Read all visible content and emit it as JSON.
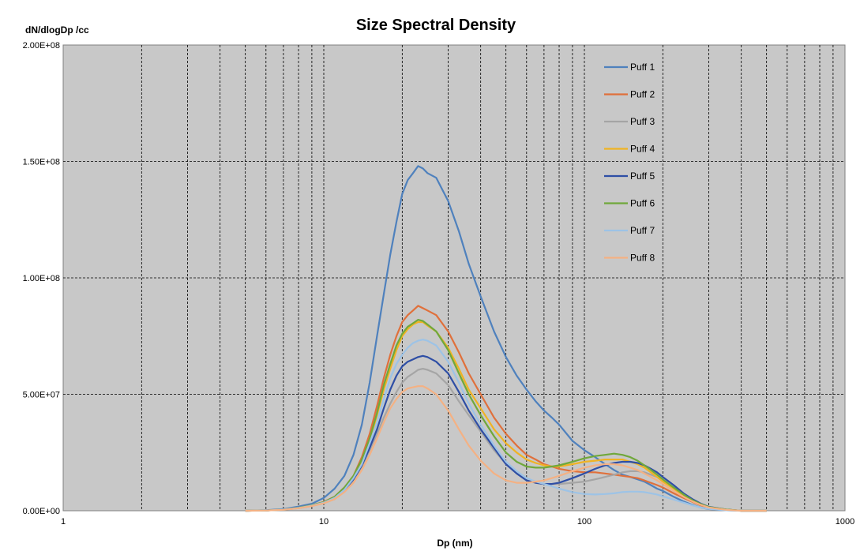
{
  "chart_data": {
    "type": "line",
    "title": "Size Spectral Density",
    "ylabel": "dN/dlogDp /cc",
    "xlabel": "Dp (nm)",
    "xscale": "log",
    "xlim": [
      1,
      1000
    ],
    "ylim": [
      0,
      200000000
    ],
    "x_ticks": [
      1,
      10,
      100,
      1000
    ],
    "x_tick_labels": [
      "1",
      "10",
      "100",
      "1000"
    ],
    "y_ticks": [
      0,
      50000000,
      100000000,
      150000000,
      200000000
    ],
    "y_tick_labels": [
      "0.00E+00",
      "5.00E+07",
      "1.00E+08",
      "1.50E+08",
      "2.00E+08"
    ],
    "grid": true,
    "background": "#c8c8c8",
    "legend_position": "top-right",
    "x": [
      5,
      6,
      7,
      8,
      9,
      10,
      11,
      12,
      13,
      14,
      15,
      16,
      17,
      18,
      19,
      20,
      21,
      22,
      23,
      24,
      25,
      27,
      30,
      33,
      36,
      40,
      45,
      50,
      55,
      60,
      65,
      70,
      75,
      80,
      90,
      100,
      110,
      120,
      130,
      140,
      150,
      160,
      170,
      180,
      190,
      200,
      220,
      240,
      260,
      280,
      300,
      350,
      400,
      500
    ],
    "series": [
      {
        "name": "Puff 1",
        "color": "#4f81bd",
        "values": [
          0,
          200000,
          700000,
          1800000,
          3000000,
          5500000,
          9500000,
          15000000,
          24000000,
          37000000,
          55000000,
          75000000,
          93000000,
          110000000,
          124000000,
          136000000,
          142000000,
          145000000,
          148000000,
          147000000,
          145000000,
          143000000,
          133000000,
          120000000,
          106000000,
          92000000,
          77000000,
          66000000,
          58000000,
          52000000,
          47000000,
          43000000,
          40000000,
          37000000,
          30000000,
          26000000,
          23000000,
          20000000,
          17500000,
          15500000,
          14500000,
          13500000,
          12500000,
          11000000,
          9500000,
          8500000,
          6000000,
          4000000,
          2500000,
          1400000,
          700000,
          200000,
          0,
          0
        ]
      },
      {
        "name": "Puff 2",
        "color": "#e0703b",
        "values": [
          0,
          100000,
          500000,
          1300000,
          2400000,
          3800000,
          6000000,
          10000000,
          15000000,
          23000000,
          33000000,
          45000000,
          57000000,
          67000000,
          75000000,
          81000000,
          84000000,
          86000000,
          88000000,
          87000000,
          86000000,
          84000000,
          77000000,
          68000000,
          59000000,
          50000000,
          40000000,
          33000000,
          28000000,
          24000000,
          22000000,
          20000000,
          19000000,
          18000000,
          17000000,
          16500000,
          16500000,
          16000000,
          15500000,
          15000000,
          14500000,
          14000000,
          13000000,
          12000000,
          11000000,
          10000000,
          7500000,
          5500000,
          3800000,
          2300000,
          1300000,
          400000,
          0,
          0
        ]
      },
      {
        "name": "Puff 3",
        "color": "#a5a5a5",
        "values": [
          0,
          100000,
          400000,
          1100000,
          2100000,
          3300000,
          5000000,
          8500000,
          13000000,
          19000000,
          26000000,
          33000000,
          40000000,
          46000000,
          51000000,
          55000000,
          57500000,
          59000000,
          60500000,
          61000000,
          60500000,
          59000000,
          54000000,
          47000000,
          41000000,
          34000000,
          26000000,
          20000000,
          16000000,
          13000000,
          12000000,
          11500000,
          11500000,
          11500000,
          12000000,
          12500000,
          13500000,
          14500000,
          15500000,
          16500000,
          17000000,
          17000000,
          16500000,
          15500000,
          14500000,
          13000000,
          10000000,
          7000000,
          4500000,
          2800000,
          1600000,
          500000,
          0,
          0
        ]
      },
      {
        "name": "Puff 4",
        "color": "#f0b323",
        "values": [
          0,
          100000,
          500000,
          1200000,
          2300000,
          3600000,
          5800000,
          9500000,
          14000000,
          21000000,
          30000000,
          41000000,
          52000000,
          61000000,
          69000000,
          75000000,
          78000000,
          80000000,
          81000000,
          81000000,
          79500000,
          77000000,
          70000000,
          61000000,
          52000000,
          44000000,
          35000000,
          29000000,
          25000000,
          22000000,
          20500000,
          19500000,
          19000000,
          19000000,
          20000000,
          21000000,
          21500000,
          22000000,
          22000000,
          22000000,
          21000000,
          20000000,
          18500000,
          16500000,
          14500000,
          12500000,
          9500000,
          6500000,
          4200000,
          2600000,
          1500000,
          500000,
          0,
          0
        ]
      },
      {
        "name": "Puff 5",
        "color": "#2e4ea5",
        "values": [
          0,
          100000,
          500000,
          1200000,
          2200000,
          3500000,
          5500000,
          9000000,
          13500000,
          19500000,
          27000000,
          35000000,
          44000000,
          52000000,
          58000000,
          62000000,
          64000000,
          65000000,
          66000000,
          66500000,
          66000000,
          64000000,
          59000000,
          51000000,
          43000000,
          35000000,
          27000000,
          20000000,
          16000000,
          13000000,
          12000000,
          11500000,
          11500000,
          12000000,
          14000000,
          16000000,
          18000000,
          19500000,
          20500000,
          21000000,
          21000000,
          20500000,
          19500000,
          18000000,
          16500000,
          14500000,
          11000000,
          7500000,
          5000000,
          3000000,
          1700000,
          500000,
          0,
          0
        ]
      },
      {
        "name": "Puff 6",
        "color": "#70a83b",
        "values": [
          0,
          100000,
          500000,
          1300000,
          2400000,
          3700000,
          6000000,
          10000000,
          15000000,
          22000000,
          31000000,
          42000000,
          54000000,
          63000000,
          71000000,
          76000000,
          79000000,
          80500000,
          82000000,
          81500000,
          80000000,
          77000000,
          69000000,
          59000000,
          50000000,
          41000000,
          32000000,
          25000000,
          21000000,
          19000000,
          18500000,
          18500000,
          19000000,
          19500000,
          21000000,
          22500000,
          23500000,
          24000000,
          24500000,
          24000000,
          23000000,
          21500000,
          19500000,
          17500000,
          15500000,
          13500000,
          10000000,
          7000000,
          4500000,
          2800000,
          1600000,
          500000,
          0,
          0
        ]
      },
      {
        "name": "Puff 7",
        "color": "#9dc3e6",
        "values": [
          0,
          100000,
          500000,
          1200000,
          2200000,
          3500000,
          5500000,
          9000000,
          14000000,
          20000000,
          29000000,
          38000000,
          48000000,
          57000000,
          63000000,
          67000000,
          70000000,
          72000000,
          73000000,
          73500000,
          73000000,
          71000000,
          64000000,
          55000000,
          46000000,
          37000000,
          28000000,
          21000000,
          17000000,
          14000000,
          12500000,
          11500000,
          10500000,
          9500000,
          8000000,
          7200000,
          7000000,
          7200000,
          7500000,
          8000000,
          8200000,
          8200000,
          8000000,
          7500000,
          7000000,
          6200000,
          4800000,
          3500000,
          2300000,
          1400000,
          800000,
          200000,
          0,
          0
        ]
      },
      {
        "name": "Puff 8",
        "color": "#f4b183",
        "values": [
          0,
          100000,
          400000,
          1100000,
          2000000,
          3200000,
          5000000,
          8000000,
          12000000,
          17500000,
          24000000,
          31000000,
          38000000,
          44000000,
          48000000,
          51000000,
          52500000,
          53000000,
          53500000,
          53500000,
          52500000,
          50000000,
          43000000,
          35000000,
          28000000,
          21500000,
          16000000,
          13000000,
          12000000,
          12000000,
          12500000,
          13000000,
          14000000,
          15000000,
          17000000,
          18500000,
          19500000,
          20000000,
          20000000,
          19500000,
          18500000,
          17500000,
          16000000,
          14500000,
          13000000,
          11500000,
          8500000,
          6000000,
          4000000,
          2500000,
          1400000,
          400000,
          0,
          0
        ]
      }
    ]
  }
}
